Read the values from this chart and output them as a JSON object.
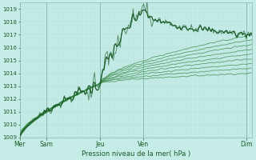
{
  "xlabel": "Pression niveau de la mer( hPa )",
  "background_color": "#c5ece6",
  "grid_color_minor": "#b0ddd8",
  "grid_color_major": "#90ccc6",
  "line_color_dark": "#1a5c28",
  "line_color_mid": "#2d7a3a",
  "line_color_thin": "#3a8a48",
  "ylim": [
    1009,
    1019.5
  ],
  "yticks": [
    1009,
    1010,
    1011,
    1012,
    1013,
    1014,
    1015,
    1016,
    1017,
    1018,
    1019
  ],
  "day_labels": [
    "Mer",
    "Sam",
    "Jeu",
    "Ven",
    "Dim"
  ],
  "day_positions": [
    0.0,
    0.115,
    0.345,
    0.53,
    0.975
  ],
  "xlim": [
    0,
    1
  ],
  "n_points": 200
}
